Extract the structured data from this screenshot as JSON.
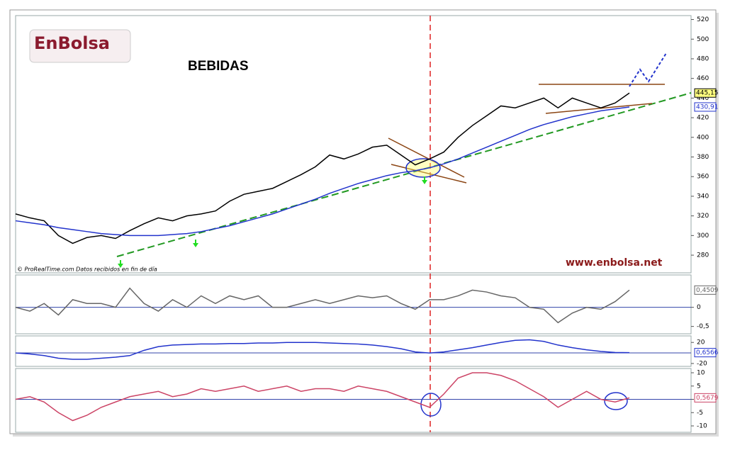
{
  "chart_data": [
    {
      "type": "line",
      "title": "BEBIDAS",
      "logo": "EnBolsa",
      "website": "www.enbolsa.net",
      "credit": "© ProRealTime.com  Datos recibidos en fin de día",
      "ylim": [
        262,
        524
      ],
      "yticks": [
        280,
        300,
        320,
        340,
        360,
        380,
        400,
        420,
        440,
        460,
        480,
        500,
        520
      ],
      "series": [
        {
          "color": "#000000",
          "values": [
            322,
            318,
            315,
            300,
            292,
            298,
            300,
            297,
            305,
            312,
            318,
            315,
            320,
            322,
            325,
            335,
            342,
            345,
            348,
            355,
            362,
            370,
            382,
            378,
            383,
            390,
            392,
            382,
            372,
            378,
            385,
            400,
            412,
            422,
            432,
            430,
            435,
            440,
            430,
            440,
            435,
            430,
            435,
            445.15
          ],
          "last_value": {
            "value": 445.15,
            "label": "445,15"
          },
          "label_color": "#ffff80"
        },
        {
          "color": "#2233cc",
          "values": [
            315,
            313,
            311,
            308,
            306,
            304,
            302,
            301,
            300,
            300,
            300,
            301,
            302,
            304,
            307,
            310,
            314,
            318,
            322,
            327,
            332,
            337,
            343,
            348,
            353,
            357,
            361,
            364,
            366,
            369,
            373,
            378,
            384,
            390,
            396,
            402,
            408,
            413,
            417,
            421,
            424,
            427,
            429,
            430.91
          ],
          "last_value": {
            "value": 430.91,
            "label": "430,91"
          },
          "label_color": "#ffffff"
        }
      ]
    },
    {
      "type": "line",
      "ylim": [
        -0.692,
        0.846
      ],
      "yticks": [
        0,
        {
          "value": -0.5,
          "label": "-0,5"
        }
      ],
      "ref_line": 0,
      "series": [
        {
          "color": "#666666",
          "values": [
            0.0,
            -0.1,
            0.1,
            -0.2,
            0.2,
            0.1,
            0.1,
            0.0,
            0.5,
            0.1,
            -0.1,
            0.2,
            0.0,
            0.3,
            0.1,
            0.3,
            0.2,
            0.3,
            0.0,
            0.0,
            0.1,
            0.2,
            0.1,
            0.2,
            0.3,
            0.25,
            0.3,
            0.1,
            -0.05,
            0.2,
            0.2,
            0.3,
            0.45,
            0.4,
            0.3,
            0.25,
            0.0,
            -0.05,
            -0.4,
            -0.15,
            0.0,
            -0.05,
            0.15,
            0.4509
          ],
          "last_value": {
            "value": 0.4509,
            "label": "0,4509"
          },
          "label_color": "#ffffff"
        }
      ]
    },
    {
      "type": "line",
      "ylim": [
        -25.5,
        32.4
      ],
      "yticks": [
        20,
        -20
      ],
      "ref_line": 0,
      "series": [
        {
          "color": "#2233cc",
          "values": [
            0,
            -2,
            -5,
            -10,
            -12,
            -12,
            -10,
            -8,
            -5,
            5,
            12,
            15,
            16,
            17,
            17,
            18,
            18,
            19,
            19,
            20,
            20,
            20,
            19,
            18,
            17,
            15,
            12,
            8,
            2,
            0,
            2,
            6,
            10,
            15,
            20,
            24,
            25,
            22,
            15,
            10,
            6,
            3,
            1,
            0.6566
          ],
          "last_value": {
            "value": 0.6566,
            "label": "0,6566"
          },
          "label_color": "#ffffff"
        }
      ]
    },
    {
      "type": "line",
      "ylim": [
        -12.4,
        11.6
      ],
      "yticks": [
        10,
        5,
        0,
        -5,
        -10
      ],
      "ref_line": 0,
      "series": [
        {
          "color": "#cc4466",
          "values": [
            0,
            1,
            -1,
            -5,
            -8,
            -6,
            -3,
            -1,
            1,
            2,
            3,
            1,
            2,
            4,
            3,
            4,
            5,
            3,
            4,
            5,
            3,
            4,
            4,
            3,
            5,
            4,
            3,
            1,
            -1,
            -3,
            2,
            8,
            10,
            10,
            9,
            7,
            4,
            1,
            -3,
            0,
            3,
            0,
            -1,
            0.5679
          ],
          "last_value": {
            "value": 0.5679,
            "label": "0,5679"
          },
          "label_color": "#ffffff"
        }
      ]
    }
  ]
}
